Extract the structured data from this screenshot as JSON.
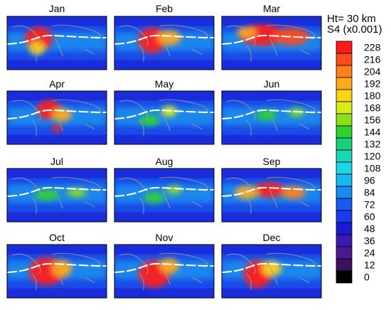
{
  "chart_data": {
    "type": "heatmap",
    "height_label": "Ht= 30 km",
    "quantity_label": "S4 (x0.001)",
    "panels": [
      {
        "title": "Jan"
      },
      {
        "title": "Feb"
      },
      {
        "title": "Mar"
      },
      {
        "title": "Apr"
      },
      {
        "title": "May"
      },
      {
        "title": "Jun"
      },
      {
        "title": "Jul"
      },
      {
        "title": "Aug"
      },
      {
        "title": "Sep"
      },
      {
        "title": "Oct"
      },
      {
        "title": "Nov"
      },
      {
        "title": "Dec"
      }
    ],
    "colorbar": {
      "levels": [
        "228",
        "216",
        "204",
        "192",
        "180",
        "168",
        "156",
        "144",
        "132",
        "120",
        "108",
        "96",
        "84",
        "72",
        "60",
        "48",
        "36",
        "24",
        "12",
        "0"
      ],
      "colors": [
        "#ff1a1a",
        "#ff4a1a",
        "#ff7f1a",
        "#ffaa1a",
        "#ffd21a",
        "#d8ec1a",
        "#8be01a",
        "#2fd32f",
        "#1acf7a",
        "#1ad7b7",
        "#1ad8e6",
        "#1ab8f0",
        "#1a8cf0",
        "#1a5af0",
        "#1a3aee",
        "#1a1ad0",
        "#3a1ab0",
        "#4a1a90",
        "#3a1260",
        "#000000"
      ]
    }
  }
}
